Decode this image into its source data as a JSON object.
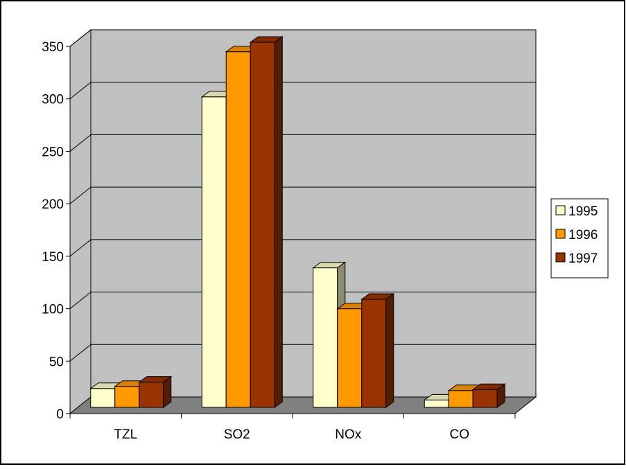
{
  "chart_data": {
    "type": "bar",
    "style": "3d-clustered-column",
    "categories": [
      "TZL",
      "SO2",
      "NOx",
      "CO"
    ],
    "series": [
      {
        "name": "1995",
        "values": [
          18,
          296,
          133,
          7
        ],
        "color": "#FFFFCC"
      },
      {
        "name": "1996",
        "values": [
          20,
          339,
          94,
          16
        ],
        "color": "#FF9900"
      },
      {
        "name": "1997",
        "values": [
          24,
          348,
          103,
          17
        ],
        "color": "#993300"
      }
    ],
    "ylim": [
      0,
      350
    ],
    "yticks": [
      0,
      50,
      100,
      150,
      200,
      250,
      300,
      350
    ],
    "grid": true,
    "legend_position": "right",
    "wall_color": "#C0C0C0",
    "floor_color": "#808080",
    "title": "",
    "xlabel": "",
    "ylabel": ""
  }
}
